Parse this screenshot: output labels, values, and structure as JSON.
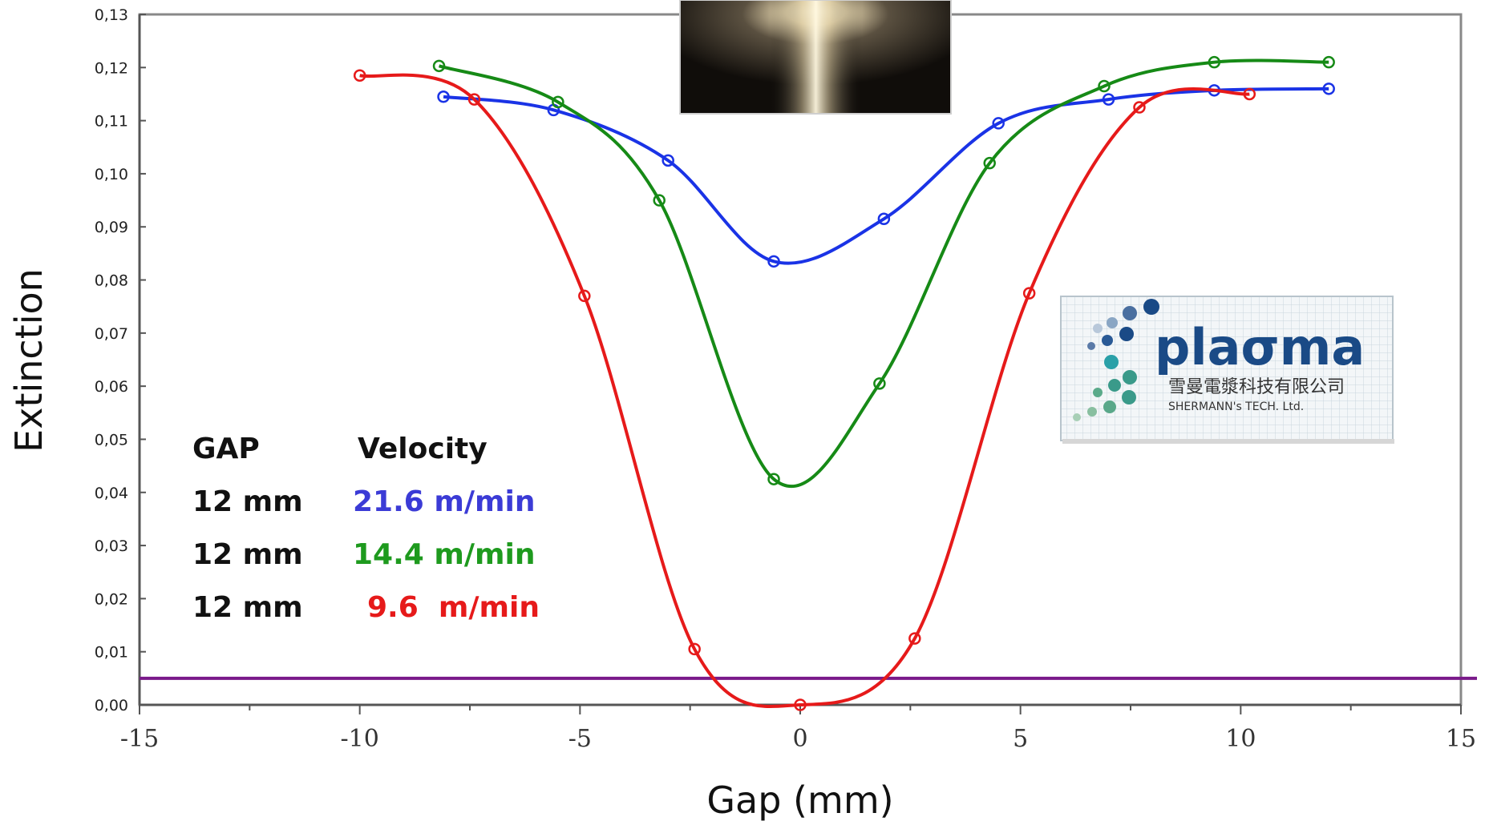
{
  "chart_data": {
    "type": "line",
    "xlabel": "Gap (mm)",
    "ylabel": "Extinction",
    "xlim": [
      -15,
      15
    ],
    "ylim": [
      0,
      0.13
    ],
    "x_ticks": [
      "-15",
      "-10",
      "-5",
      "0",
      "5",
      "10",
      "15"
    ],
    "y_ticks": [
      "0,00",
      "0,01",
      "0,02",
      "0,03",
      "0,04",
      "0,05",
      "0,06",
      "0,07",
      "0,08",
      "0,09",
      "0,10",
      "0,11",
      "0,12",
      "0,13"
    ],
    "grid": false,
    "reference_line": {
      "y": 0.005,
      "color": "#7a1a8a"
    },
    "series": [
      {
        "name": "21.6 m/min",
        "color": "#1a33e6",
        "x": [
          -8.1,
          -5.6,
          -3.0,
          -0.6,
          1.9,
          4.5,
          7.0,
          9.4,
          12.0
        ],
        "y": [
          0.1145,
          0.112,
          0.1025,
          0.0835,
          0.0915,
          0.1095,
          0.114,
          0.1157,
          0.116
        ]
      },
      {
        "name": "14.4 m/min",
        "color": "#168a16",
        "x": [
          -8.2,
          -5.5,
          -3.2,
          -0.6,
          1.8,
          4.3,
          6.9,
          9.4,
          12.0
        ],
        "y": [
          0.1203,
          0.1135,
          0.095,
          0.0425,
          0.0605,
          0.102,
          0.1165,
          0.121,
          0.121
        ]
      },
      {
        "name": "9.6 m/min",
        "color": "#e61a1a",
        "x": [
          -10.0,
          -7.4,
          -4.9,
          -2.4,
          0.0,
          2.6,
          5.2,
          7.7,
          10.2
        ],
        "y": [
          0.1185,
          0.114,
          0.077,
          0.0105,
          0.0,
          0.0125,
          0.0775,
          0.1125,
          0.115
        ]
      }
    ]
  },
  "legend": {
    "header_gap": "GAP",
    "header_velocity": "Velocity",
    "rows": [
      {
        "gap": "12 mm",
        "velocity": "21.6 m/min",
        "color": "#3b3bd6"
      },
      {
        "gap": "12 mm",
        "velocity": "14.4 m/min",
        "color": "#1e9a1e"
      },
      {
        "gap": "12 mm",
        "velocity": "9.6  m/min",
        "color": "#e61a1a"
      }
    ]
  },
  "logo": {
    "word": "plaσma",
    "chinese": "雪曼電漿科技有限公司",
    "english": "SHERMANN's TECH. Ltd."
  }
}
